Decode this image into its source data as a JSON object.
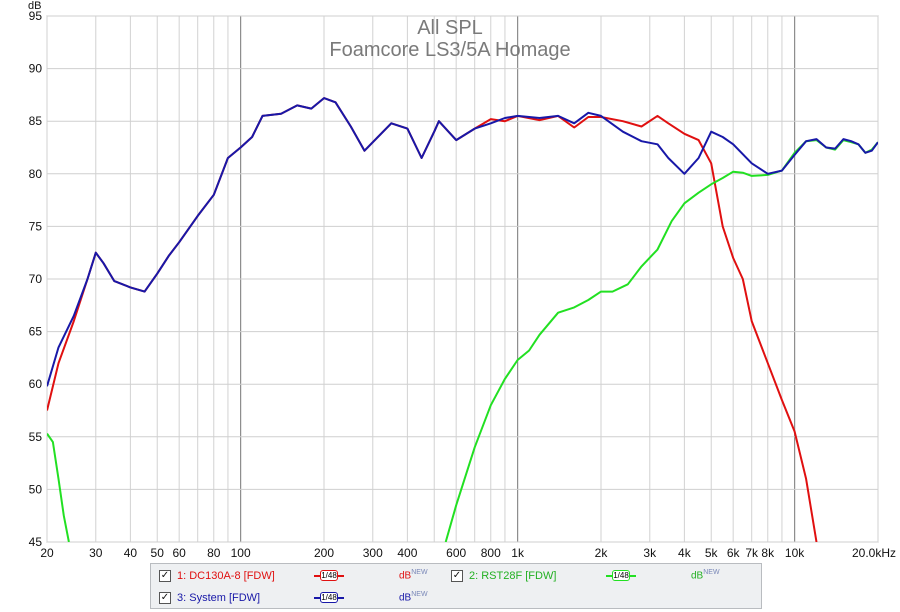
{
  "chart_data": {
    "type": "line",
    "title": "All SPL",
    "subtitle": "Foamcore LS3/5A Homage",
    "ylabel": "dB",
    "xscale": "log",
    "xlim": [
      20,
      20000
    ],
    "ylim": [
      45,
      95
    ],
    "yticks": [
      45,
      50,
      55,
      60,
      65,
      70,
      75,
      80,
      85,
      90,
      95
    ],
    "xticks": [
      {
        "v": 20,
        "label": "20"
      },
      {
        "v": 30,
        "label": "30"
      },
      {
        "v": 40,
        "label": "40"
      },
      {
        "v": 50,
        "label": "50"
      },
      {
        "v": 60,
        "label": "60"
      },
      {
        "v": 80,
        "label": "80"
      },
      {
        "v": 100,
        "label": "100"
      },
      {
        "v": 200,
        "label": "200"
      },
      {
        "v": 300,
        "label": "300"
      },
      {
        "v": 400,
        "label": "400"
      },
      {
        "v": 600,
        "label": "600"
      },
      {
        "v": 800,
        "label": "800"
      },
      {
        "v": 1000,
        "label": "1k"
      },
      {
        "v": 2000,
        "label": "2k"
      },
      {
        "v": 3000,
        "label": "3k"
      },
      {
        "v": 4000,
        "label": "4k"
      },
      {
        "v": 5000,
        "label": "5k"
      },
      {
        "v": 6000,
        "label": "6k"
      },
      {
        "v": 7000,
        "label": "7k"
      },
      {
        "v": 8000,
        "label": "8k"
      },
      {
        "v": 10000,
        "label": "10k"
      },
      {
        "v": 20000,
        "label": "20.0kHz"
      }
    ],
    "grid": true,
    "series": [
      {
        "name": "1: DC130A-8 [FDW]",
        "color": "#e01010",
        "points": [
          [
            20,
            57.5
          ],
          [
            22,
            62
          ],
          [
            25,
            66
          ],
          [
            28,
            70
          ],
          [
            30,
            72.5
          ],
          [
            32,
            71.5
          ],
          [
            35,
            69.8
          ],
          [
            40,
            69.2
          ],
          [
            45,
            68.8
          ],
          [
            50,
            70.5
          ],
          [
            55,
            72.2
          ],
          [
            60,
            73.5
          ],
          [
            70,
            76
          ],
          [
            80,
            78
          ],
          [
            90,
            81.5
          ],
          [
            100,
            82.5
          ],
          [
            110,
            83.5
          ],
          [
            120,
            85.5
          ],
          [
            140,
            85.7
          ],
          [
            160,
            86.5
          ],
          [
            180,
            86.2
          ],
          [
            200,
            87.2
          ],
          [
            220,
            86.8
          ],
          [
            250,
            84.5
          ],
          [
            280,
            82.2
          ],
          [
            300,
            83
          ],
          [
            350,
            84.8
          ],
          [
            400,
            84.3
          ],
          [
            450,
            81.5
          ],
          [
            500,
            84
          ],
          [
            520,
            85
          ],
          [
            600,
            83.2
          ],
          [
            700,
            84.3
          ],
          [
            800,
            85.2
          ],
          [
            900,
            85
          ],
          [
            1000,
            85.5
          ],
          [
            1200,
            85.1
          ],
          [
            1400,
            85.5
          ],
          [
            1600,
            84.4
          ],
          [
            1800,
            85.4
          ],
          [
            2000,
            85.4
          ],
          [
            2400,
            85
          ],
          [
            2800,
            84.5
          ],
          [
            3200,
            85.5
          ],
          [
            3500,
            84.8
          ],
          [
            4000,
            83.8
          ],
          [
            4500,
            83.2
          ],
          [
            5000,
            81
          ],
          [
            5500,
            75
          ],
          [
            6000,
            72
          ],
          [
            6500,
            70
          ],
          [
            7000,
            66
          ],
          [
            8000,
            62
          ],
          [
            9000,
            58.5
          ],
          [
            10000,
            55.5
          ],
          [
            11000,
            51
          ],
          [
            12000,
            45
          ]
        ]
      },
      {
        "name": "2: RST28F [FDW]",
        "color": "#22e022",
        "points": [
          [
            20,
            55.3
          ],
          [
            21,
            54.5
          ],
          [
            22,
            51
          ],
          [
            23,
            47.5
          ],
          [
            24,
            45
          ],
          [
            550,
            45
          ],
          [
            600,
            48.5
          ],
          [
            700,
            54
          ],
          [
            800,
            58
          ],
          [
            900,
            60.5
          ],
          [
            1000,
            62.3
          ],
          [
            1100,
            63.2
          ],
          [
            1200,
            64.7
          ],
          [
            1400,
            66.8
          ],
          [
            1600,
            67.3
          ],
          [
            1800,
            68
          ],
          [
            2000,
            68.8
          ],
          [
            2200,
            68.8
          ],
          [
            2500,
            69.5
          ],
          [
            2800,
            71.2
          ],
          [
            3200,
            72.8
          ],
          [
            3600,
            75.5
          ],
          [
            4000,
            77.2
          ],
          [
            4500,
            78.2
          ],
          [
            5000,
            79
          ],
          [
            5500,
            79.6
          ],
          [
            6000,
            80.2
          ],
          [
            6500,
            80.1
          ],
          [
            7000,
            79.8
          ],
          [
            8000,
            79.9
          ],
          [
            9000,
            80.3
          ],
          [
            10000,
            82
          ],
          [
            11000,
            83.1
          ],
          [
            12000,
            83.2
          ],
          [
            13000,
            82.5
          ],
          [
            14000,
            82.3
          ],
          [
            15000,
            83.2
          ],
          [
            16000,
            83
          ],
          [
            17000,
            82.8
          ],
          [
            18000,
            82
          ],
          [
            19000,
            82.3
          ],
          [
            20000,
            83
          ]
        ]
      },
      {
        "name": "3: System [FDW]",
        "color": "#1818a8",
        "points": [
          [
            20,
            59.8
          ],
          [
            22,
            63.5
          ],
          [
            25,
            66.5
          ],
          [
            28,
            70
          ],
          [
            30,
            72.5
          ],
          [
            32,
            71.5
          ],
          [
            35,
            69.8
          ],
          [
            40,
            69.2
          ],
          [
            45,
            68.8
          ],
          [
            50,
            70.5
          ],
          [
            55,
            72.2
          ],
          [
            60,
            73.5
          ],
          [
            70,
            76
          ],
          [
            80,
            78
          ],
          [
            90,
            81.5
          ],
          [
            100,
            82.5
          ],
          [
            110,
            83.5
          ],
          [
            120,
            85.5
          ],
          [
            140,
            85.7
          ],
          [
            160,
            86.5
          ],
          [
            180,
            86.2
          ],
          [
            200,
            87.2
          ],
          [
            220,
            86.8
          ],
          [
            250,
            84.5
          ],
          [
            280,
            82.2
          ],
          [
            300,
            83
          ],
          [
            350,
            84.8
          ],
          [
            400,
            84.3
          ],
          [
            450,
            81.5
          ],
          [
            500,
            84
          ],
          [
            520,
            85
          ],
          [
            600,
            83.2
          ],
          [
            700,
            84.3
          ],
          [
            800,
            84.8
          ],
          [
            900,
            85.3
          ],
          [
            1000,
            85.5
          ],
          [
            1200,
            85.3
          ],
          [
            1400,
            85.5
          ],
          [
            1600,
            84.8
          ],
          [
            1800,
            85.8
          ],
          [
            2000,
            85.5
          ],
          [
            2400,
            84
          ],
          [
            2800,
            83.1
          ],
          [
            3200,
            82.8
          ],
          [
            3500,
            81.5
          ],
          [
            4000,
            80
          ],
          [
            4500,
            81.5
          ],
          [
            5000,
            84
          ],
          [
            5500,
            83.5
          ],
          [
            6000,
            82.8
          ],
          [
            7000,
            81
          ],
          [
            8000,
            80
          ],
          [
            9000,
            80.3
          ],
          [
            10000,
            81.8
          ],
          [
            11000,
            83.1
          ],
          [
            12000,
            83.3
          ],
          [
            13000,
            82.5
          ],
          [
            14000,
            82.4
          ],
          [
            15000,
            83.3
          ],
          [
            16000,
            83.1
          ],
          [
            17000,
            82.8
          ],
          [
            18000,
            82
          ],
          [
            19000,
            82.2
          ],
          [
            20000,
            83
          ]
        ]
      }
    ]
  },
  "legend": {
    "items": [
      {
        "label": "1: DC130A-8 [FDW]",
        "smoothing": "1/48",
        "unit": "dB",
        "unit_sup": "NEW",
        "color": "#e01010",
        "checked": "✓"
      },
      {
        "label": "2: RST28F [FDW]",
        "smoothing": "1/48",
        "unit": "dB",
        "unit_sup": "NEW",
        "color": "#22e022",
        "checked": "✓"
      },
      {
        "label": "3: System [FDW]",
        "smoothing": "1/48",
        "unit": "dB",
        "unit_sup": "NEW",
        "color": "#1818a8",
        "checked": "✓"
      }
    ]
  }
}
